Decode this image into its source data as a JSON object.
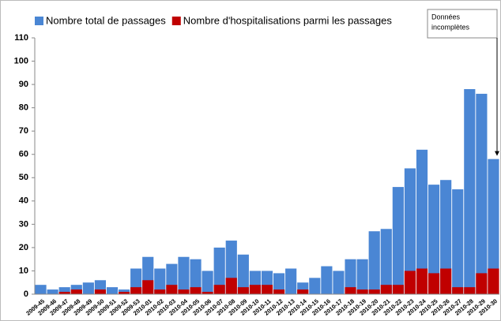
{
  "chart_data": {
    "type": "bar",
    "categories": [
      "2009-45",
      "2009-46",
      "2009-47",
      "2009-48",
      "2009-49",
      "2009-50",
      "2009-51",
      "2009-52",
      "2009-53",
      "2010-01",
      "2010-02",
      "2010-03",
      "2010-04",
      "2010-05",
      "2010-06",
      "2010-07",
      "2010-08",
      "2010-09",
      "2010-10",
      "2010-11",
      "2010-12",
      "2010-13",
      "2010-14",
      "2010-15",
      "2010-16",
      "2010-17",
      "2010-18",
      "2010-19",
      "2010-20",
      "2010-21",
      "2010-22",
      "2010-23",
      "2010-24",
      "2010-25",
      "2010-26",
      "2010-27",
      "2010-28",
      "2010-29",
      "2010-30"
    ],
    "series": [
      {
        "name": "Nombre total de passages",
        "color": "#4a86d4",
        "values": [
          4,
          2,
          3,
          4,
          5,
          6,
          3,
          2,
          11,
          16,
          11,
          13,
          16,
          15,
          10,
          20,
          23,
          17,
          10,
          10,
          9,
          11,
          5,
          7,
          12,
          10,
          15,
          15,
          27,
          28,
          46,
          54,
          62,
          47,
          49,
          45,
          88,
          86,
          58
        ]
      },
      {
        "name": "Nombre d'hospitalisations parmi les passages",
        "color": "#c00000",
        "values": [
          0,
          0,
          1,
          2,
          0,
          2,
          0,
          1,
          3,
          6,
          2,
          4,
          2,
          3,
          1,
          4,
          7,
          3,
          4,
          4,
          2,
          0,
          2,
          0,
          0,
          0,
          3,
          2,
          2,
          4,
          4,
          10,
          11,
          9,
          11,
          3,
          3,
          9,
          11
        ]
      }
    ],
    "ylim": [
      0,
      110
    ],
    "yticks": [
      0,
      10,
      20,
      30,
      40,
      50,
      60,
      70,
      80,
      90,
      100,
      110
    ],
    "grid": false,
    "annotation": [
      "Données",
      "incomplètes"
    ]
  }
}
